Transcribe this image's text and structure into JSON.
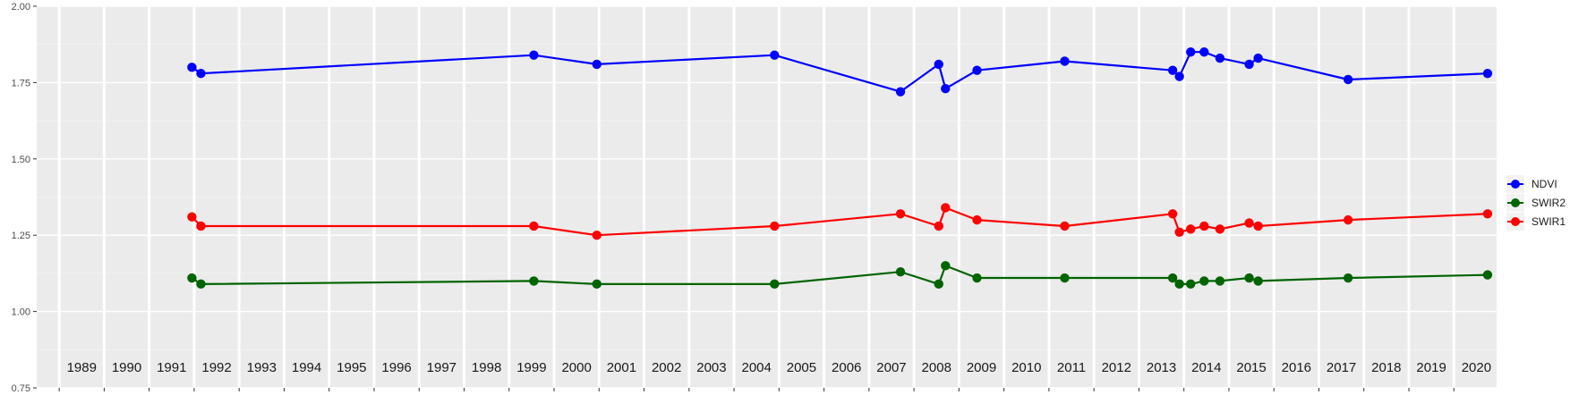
{
  "chart_data": {
    "type": "line",
    "title": "",
    "xlabel": "",
    "ylabel": "",
    "ylim": [
      0.75,
      2.0
    ],
    "yticks": [
      "0.75",
      "1.00",
      "1.25",
      "1.50",
      "1.75",
      "2.00"
    ],
    "xlim": [
      1988.5,
      2020.95
    ],
    "year_labels": [
      "1989",
      "1990",
      "1991",
      "1992",
      "1993",
      "1994",
      "1995",
      "1996",
      "1997",
      "1998",
      "1999",
      "2000",
      "2001",
      "2002",
      "2003",
      "2004",
      "2005",
      "2006",
      "2007",
      "2008",
      "2009",
      "2010",
      "2011",
      "2012",
      "2013",
      "2014",
      "2015",
      "2016",
      "2017",
      "2018",
      "2019",
      "2020"
    ],
    "grid": true,
    "legend_position": "right",
    "x": [
      1991.95,
      1992.15,
      1999.55,
      2000.95,
      2004.9,
      2007.7,
      2008.55,
      2008.7,
      2009.4,
      2011.35,
      2013.75,
      2013.9,
      2014.15,
      2014.45,
      2014.8,
      2015.45,
      2015.65,
      2017.65,
      2020.75
    ],
    "series": [
      {
        "name": "NDVI",
        "color": "#0000ff",
        "values": [
          1.8,
          1.78,
          1.84,
          1.81,
          1.84,
          1.72,
          1.81,
          1.73,
          1.79,
          1.82,
          1.79,
          1.77,
          1.85,
          1.85,
          1.83,
          1.81,
          1.83,
          1.76,
          1.78
        ]
      },
      {
        "name": "SWIR2",
        "color": "#006400",
        "values": [
          1.11,
          1.09,
          1.1,
          1.09,
          1.09,
          1.13,
          1.09,
          1.15,
          1.11,
          1.11,
          1.11,
          1.09,
          1.09,
          1.1,
          1.1,
          1.11,
          1.1,
          1.11,
          1.12
        ]
      },
      {
        "name": "SWIR1",
        "color": "#ff0000",
        "values": [
          1.31,
          1.28,
          1.28,
          1.25,
          1.28,
          1.32,
          1.28,
          1.34,
          1.3,
          1.28,
          1.32,
          1.26,
          1.27,
          1.28,
          1.27,
          1.29,
          1.28,
          1.3,
          1.32
        ]
      }
    ]
  }
}
